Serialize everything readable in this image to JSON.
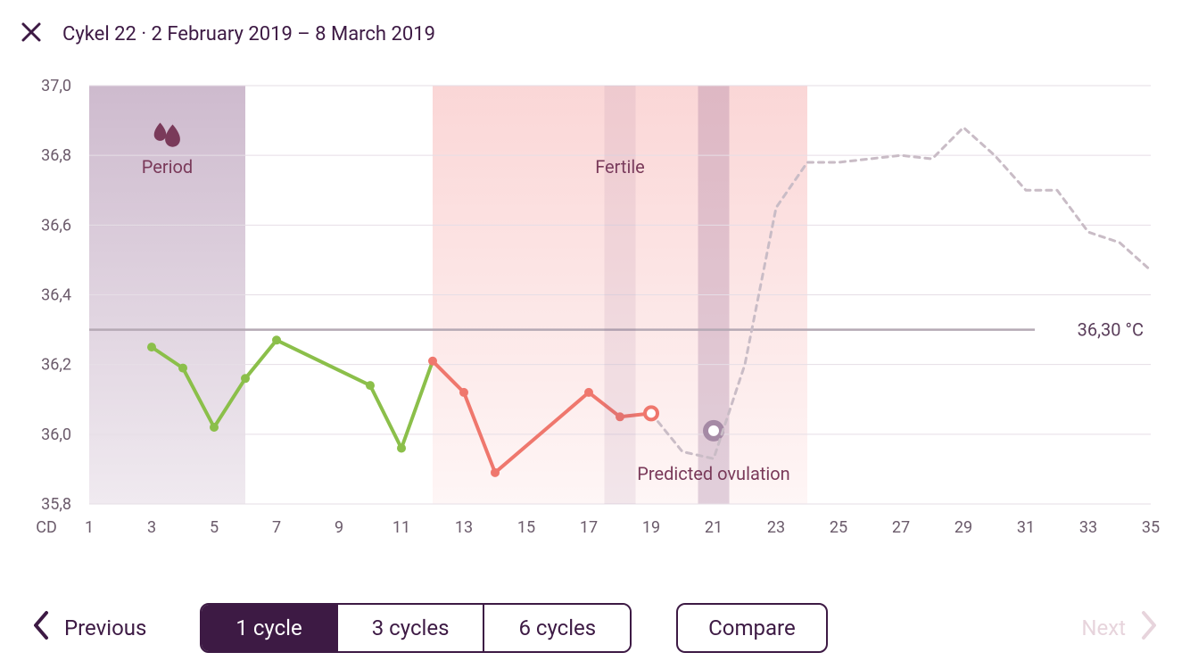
{
  "header": {
    "title": "Cykel 22 · 2 February 2019 – 8 March 2019"
  },
  "chart": {
    "type": "line",
    "x_domain_days": [
      1,
      35
    ],
    "y_domain_temp": [
      35.8,
      37.0
    ],
    "y_ticks": [
      "37,0",
      "36,8",
      "36,6",
      "36,4",
      "36,2",
      "36,0",
      "35,8"
    ],
    "x_ticks": [
      "CD",
      "1",
      "3",
      "5",
      "7",
      "9",
      "11",
      "13",
      "15",
      "17",
      "19",
      "21",
      "23",
      "25",
      "27",
      "29",
      "31",
      "33",
      "35"
    ],
    "reference_line": {
      "value": 36.3,
      "label": "36,30 °C",
      "color": "#b5a9b4"
    },
    "grid_color": "#e6dee6",
    "background_color": "#ffffff",
    "line_width": 4,
    "marker_radius": 5,
    "regions": [
      {
        "key": "period",
        "label": "Period",
        "icon": "drops",
        "day_range": [
          1,
          6
        ],
        "fill_color_top": "rgba(138,92,138,0.42)",
        "fill_color_bottom": "rgba(138,92,138,0.13)"
      },
      {
        "key": "fertile",
        "label": "Fertile",
        "icon": null,
        "day_range": [
          12,
          24
        ],
        "fill_color_top": "rgba(245,165,165,0.45)",
        "fill_color_bottom": "rgba(245,165,165,0.10)"
      }
    ],
    "predicted_ovulation": {
      "label": "Predicted ovulation",
      "day_range": [
        20.5,
        21.5
      ],
      "marker_day": 21,
      "marker_temp": 36.01,
      "band_color": "rgba(138,92,138,0.25)",
      "marker_color": "#a58aa5"
    },
    "actual": {
      "green": {
        "color": "#8bbf4a",
        "points": [
          {
            "d": 3,
            "t": 36.25
          },
          {
            "d": 4,
            "t": 36.19
          },
          {
            "d": 5,
            "t": 36.02
          },
          {
            "d": 6,
            "t": 36.16
          },
          {
            "d": 7,
            "t": 36.27
          },
          {
            "d": 10,
            "t": 36.14
          },
          {
            "d": 11,
            "t": 35.96
          },
          {
            "d": 12,
            "t": 36.21
          }
        ],
        "markers_at_days": [
          3,
          4,
          5,
          6,
          7,
          10,
          11
        ]
      },
      "red": {
        "color": "#ef776d",
        "points": [
          {
            "d": 12,
            "t": 36.21
          },
          {
            "d": 13,
            "t": 36.12
          },
          {
            "d": 14,
            "t": 35.89
          },
          {
            "d": 17,
            "t": 36.12
          },
          {
            "d": 18,
            "t": 36.05
          },
          {
            "d": 19,
            "t": 36.06
          }
        ],
        "markers_at_days": [
          12,
          13,
          14,
          17,
          18
        ],
        "open_marker_at": {
          "d": 19,
          "t": 36.06
        }
      }
    },
    "predicted_path": {
      "color": "#c9bcc6",
      "dash": "6,6",
      "points": [
        {
          "d": 19,
          "t": 36.06
        },
        {
          "d": 20,
          "t": 35.95
        },
        {
          "d": 21,
          "t": 35.93
        },
        {
          "d": 22,
          "t": 36.2
        },
        {
          "d": 23,
          "t": 36.65
        },
        {
          "d": 24,
          "t": 36.78
        },
        {
          "d": 25,
          "t": 36.78
        },
        {
          "d": 26,
          "t": 36.79
        },
        {
          "d": 27,
          "t": 36.8
        },
        {
          "d": 28,
          "t": 36.79
        },
        {
          "d": 29,
          "t": 36.88
        },
        {
          "d": 30,
          "t": 36.8
        },
        {
          "d": 31,
          "t": 36.7
        },
        {
          "d": 32,
          "t": 36.7
        },
        {
          "d": 33,
          "t": 36.58
        },
        {
          "d": 34,
          "t": 36.55
        },
        {
          "d": 35,
          "t": 36.47
        }
      ]
    }
  },
  "nav": {
    "prev_label": "Previous",
    "next_label": "Next",
    "segments": [
      "1 cycle",
      "3 cycles",
      "6 cycles"
    ],
    "active_segment_index": 0,
    "compare_label": "Compare"
  }
}
